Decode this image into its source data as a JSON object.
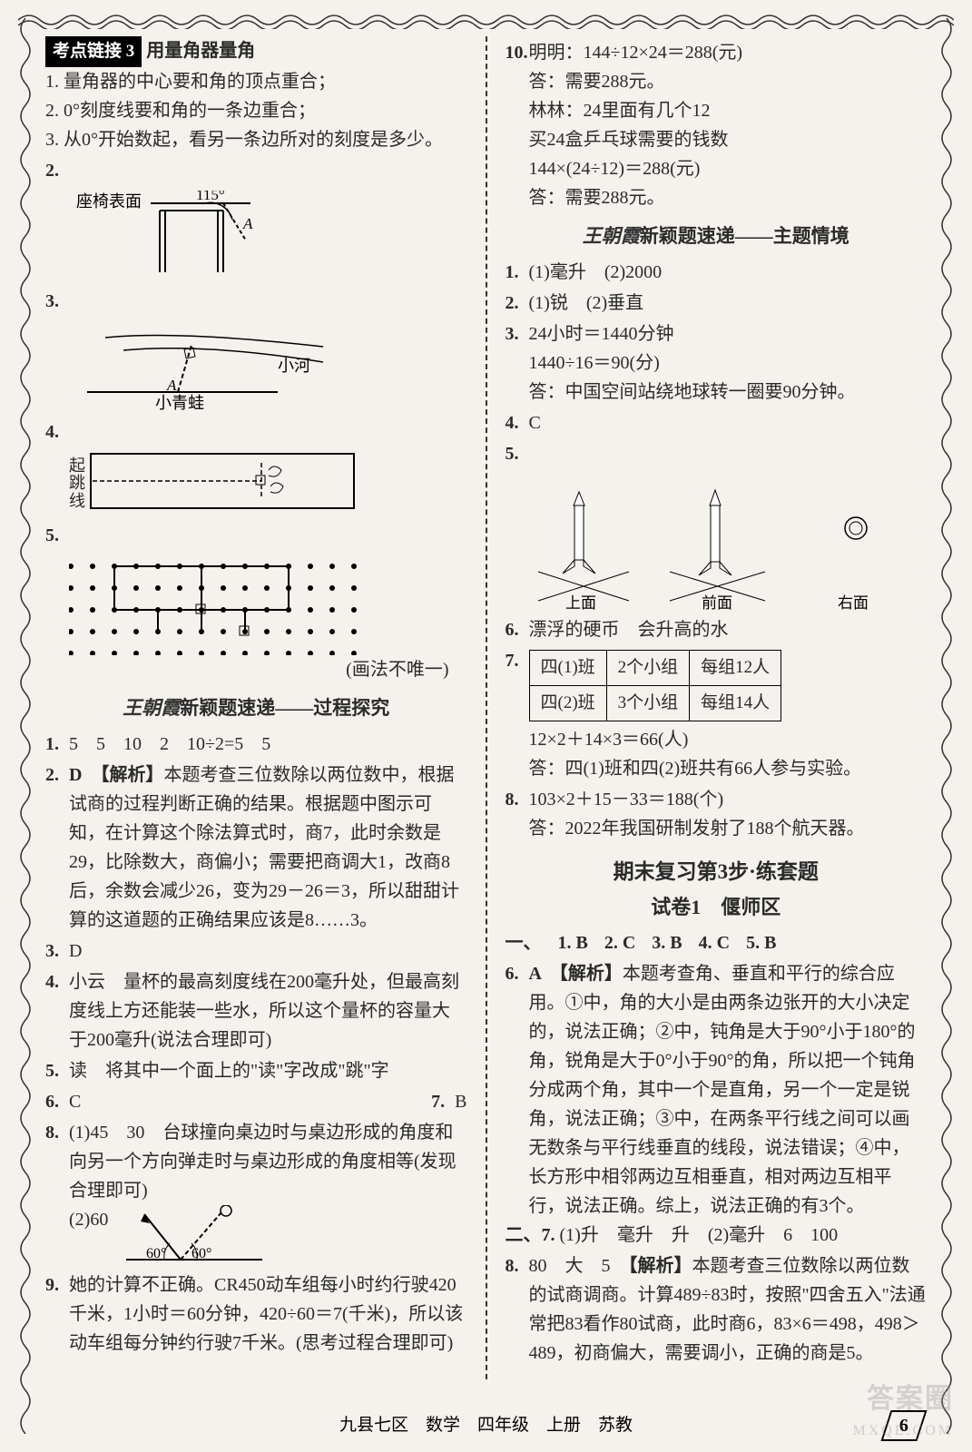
{
  "page": {
    "footer": "九县七区　数学　四年级　上册　苏教",
    "page_number": "6",
    "watermark1": "答案圈",
    "watermark2": "MXQE.COM"
  },
  "left": {
    "kd_badge": "考点链接 3",
    "kd_title": "用量角器量角",
    "kd_lines": [
      "1. 量角器的中心要和角的顶点重合；",
      "2. 0°刻度线要和角的一条边重合；",
      "3. 从0°开始数起，看另一条边所对的刻度是多少。"
    ],
    "fig2_num": "2.",
    "fig2_label1": "座椅表面",
    "fig2_angle": "115°",
    "fig2_point": "A",
    "fig3_num": "3.",
    "fig3_river": "小河",
    "fig3_point": "A",
    "fig3_frog": "小青蛙",
    "fig4_num": "4.",
    "fig4_label": "起跳线",
    "fig5_num": "5.",
    "fig5_note": "(画法不唯一)",
    "proc_title_hand": "王朝霞",
    "proc_title_rest": "新颖题速递——过程探究",
    "q1_num": "1.",
    "q1_body": "5　5　10　2　10÷2=5　5",
    "q2_num": "2.",
    "q2_head": "D　【解析】",
    "q2_body": "本题考查三位数除以两位数中，根据试商的过程判断正确的结果。根据题中图示可知，在计算这个除法算式时，商7，此时余数是29，比除数大，商偏小；需要把商调大1，改商8后，余数会减少26，变为29－26＝3，所以甜甜计算的这道题的正确结果应该是8……3。",
    "q3_num": "3.",
    "q3_body": "D",
    "q4_num": "4.",
    "q4_body": "小云　量杯的最高刻度线在200毫升处，但最高刻度线上方还能装一些水，所以这个量杯的容量大于200毫升(说法合理即可)",
    "q5_num": "5.",
    "q5_body": "读　将其中一个面上的\"读\"字改成\"跳\"字",
    "q6_num": "6.",
    "q6_body": "C",
    "q7_num": "7.",
    "q7_body": "B",
    "q8_num": "8.",
    "q8_l1": "(1)45　30　台球撞向桌边时与桌边形成的角度和向另一个方向弹走时与桌边形成的角度相等(发现合理即可)",
    "q8_l2": "(2)60",
    "q8_angle1": "60°",
    "q8_angle2": "60°",
    "q9_num": "9.",
    "q9_body": "她的计算不正确。CR450动车组每小时约行驶420千米，1小时＝60分钟，420÷60＝7(千米)，所以该动车组每分钟约行驶7千米。(思考过程合理即可)"
  },
  "right": {
    "q10_num": "10.",
    "q10_l1": "明明：144÷12×24＝288(元)",
    "q10_l2": "答：需要288元。",
    "q10_l3": "林林：24里面有几个12",
    "q10_l4": "买24盒乒乓球需要的钱数",
    "q10_l5": "144×(24÷12)＝288(元)",
    "q10_l6": "答：需要288元。",
    "theme_title_hand": "王朝霞",
    "theme_title_rest": "新颖题速递——主题情境",
    "t1_num": "1.",
    "t1_body": "(1)毫升　(2)2000",
    "t2_num": "2.",
    "t2_body": "(1)锐　(2)垂直",
    "t3_num": "3.",
    "t3_l1": "24小时＝1440分钟",
    "t3_l2": "1440÷16＝90(分)",
    "t3_l3": "答：中国空间站绕地球转一圈要90分钟。",
    "t4_num": "4.",
    "t4_body": "C",
    "t5_num": "5.",
    "t5_labels": {
      "a": "上面",
      "b": "前面",
      "c": "右面"
    },
    "t6_num": "6.",
    "t6_body": "漂浮的硬币　会升高的水",
    "t7_num": "7.",
    "t7_table": {
      "rows": [
        [
          "四(1)班",
          "2个小组",
          "每组12人"
        ],
        [
          "四(2)班",
          "3个小组",
          "每组14人"
        ]
      ]
    },
    "t7_calc": "12×2＋14×3＝66(人)",
    "t7_ans": "答：四(1)班和四(2)班共有66人参与实验。",
    "t8_num": "8.",
    "t8_l1": "103×2＋15－33＝188(个)",
    "t8_l2": "答：2022年我国研制发射了188个航天器。",
    "chapter": "期末复习第3步·练套题",
    "paper": "试卷1　偃师区",
    "sec1_label": "一、",
    "sec1_items": {
      "a": "1. B",
      "b": "2. C",
      "c": "3. B",
      "d": "4. C",
      "e": "5. B"
    },
    "s6_num": "6.",
    "s6_head": "A　【解析】",
    "s6_body": "本题考查角、垂直和平行的综合应用。①中，角的大小是由两条边张开的大小决定的，说法正确；②中，钝角是大于90°小于180°的角，锐角是大于0°小于90°的角，所以把一个钝角分成两个角，其中一个是直角，另一个一定是锐角，说法正确；③中，在两条平行线之间可以画无数条与平行线垂直的线段，说法错误；④中，长方形中相邻两边互相垂直，相对两边互相平行，说法正确。综上，说法正确的有3个。",
    "sec2_label": "二、",
    "sec2_7": "7.",
    "sec2_7_body": "(1)升　毫升　升　(2)毫升　6　100",
    "s8_num": "8.",
    "s8_a": "80　大　5　",
    "s8_head": "【解析】",
    "s8_body": "本题考查三位数除以两位数的试商调商。计算489÷83时，按照\"四舍五入\"法通常把83看作80试商，此时商6，83×6＝498，498＞489，初商偏大，需要调小，正确的商是5。"
  }
}
